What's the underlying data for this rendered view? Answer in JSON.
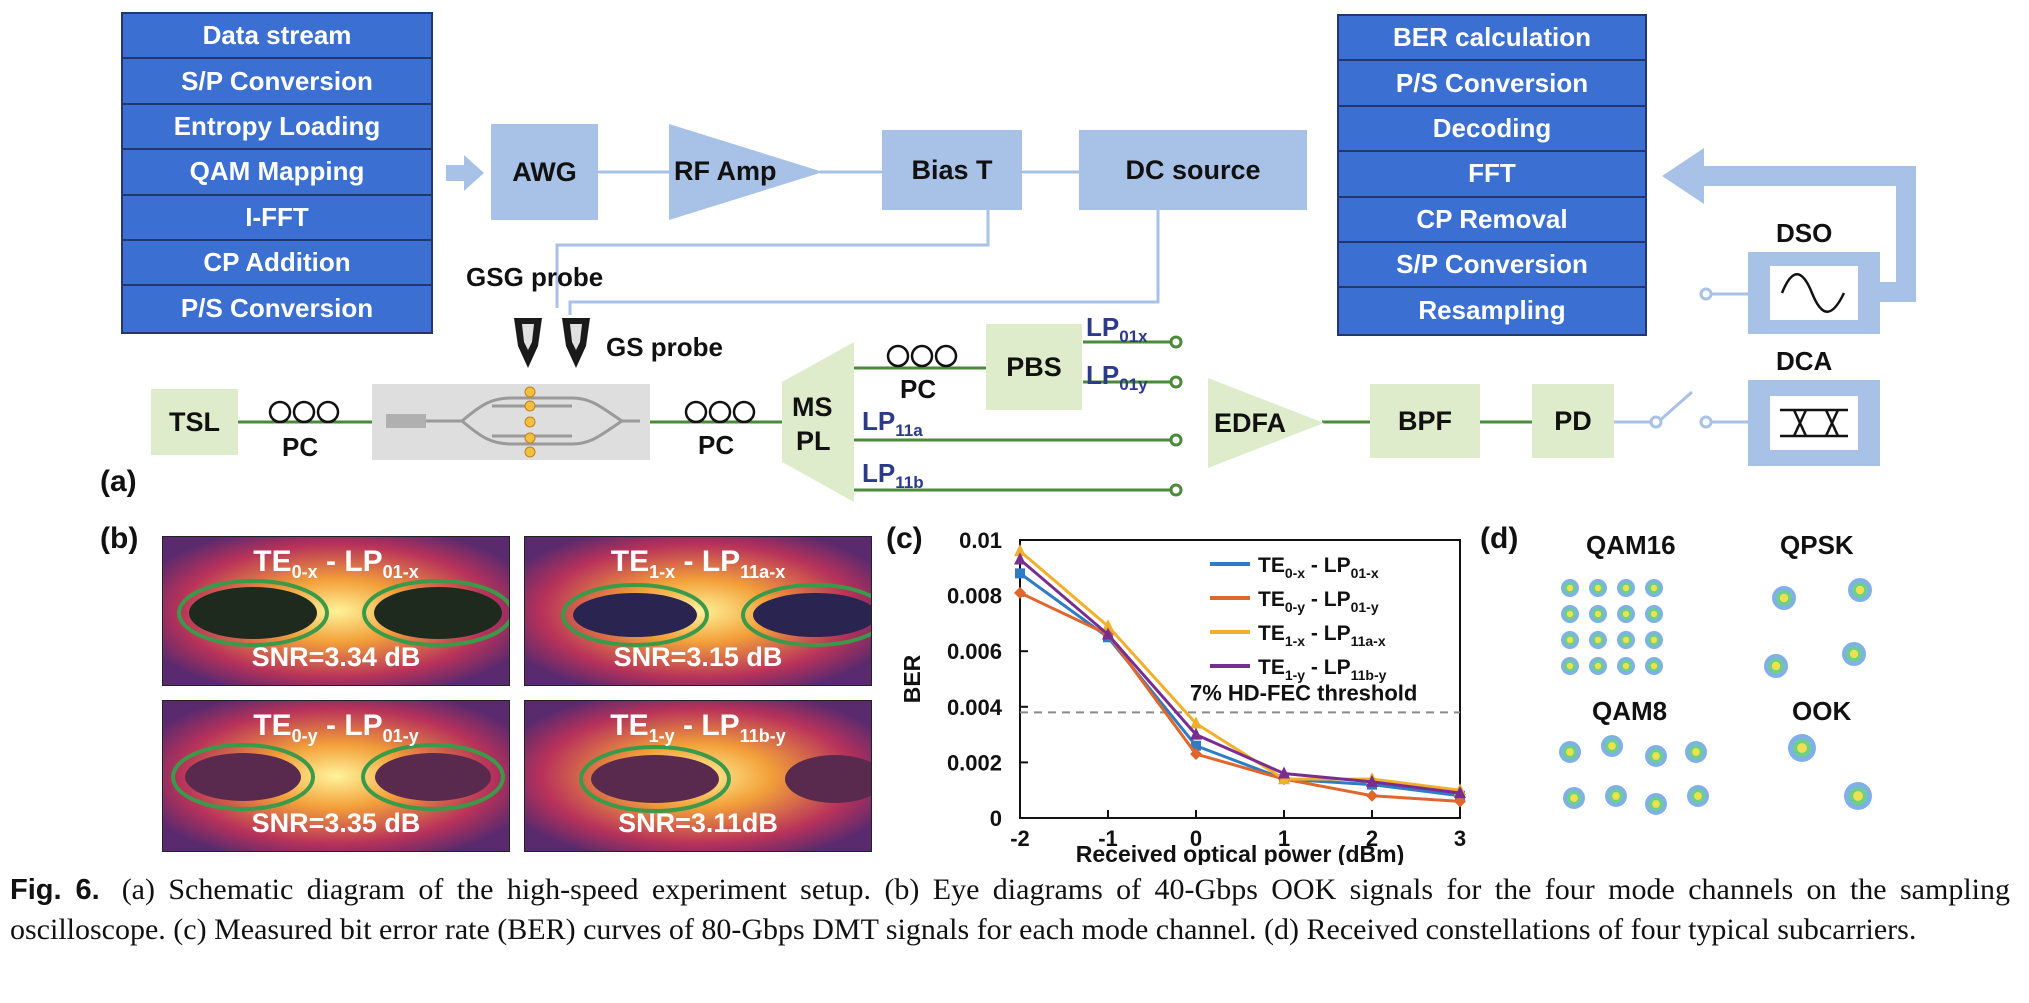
{
  "figure_number": "Fig. 6.",
  "caption": "(a) Schematic diagram of the high-speed experiment setup. (b) Eye diagrams of 40-Gbps OOK signals for the four mode channels on the sampling oscilloscope. (c) Measured bit error rate (BER) curves of 80-Gbps DMT signals for each mode channel. (d) Received constellations of four typical subcarriers.",
  "panel_a": {
    "letter": "(a)",
    "tx_stack": [
      "Data stream",
      "S/P Conversion",
      "Entropy Loading",
      "QAM Mapping",
      "I-FFT",
      "CP Addition",
      "P/S Conversion"
    ],
    "rx_stack": [
      "BER calculation",
      "P/S Conversion",
      "Decoding",
      "FFT",
      "CP Removal",
      "S/P Conversion",
      "Resampling"
    ],
    "awg": "AWG",
    "rf_amp": "RF Amp",
    "bias_t": "Bias T",
    "dc_source": "DC source",
    "gsg_probe": "GSG probe",
    "gs_probe": "GS probe",
    "tsl": "TSL",
    "pc": "PC",
    "mspl_line1": "MS",
    "mspl_line2": "PL",
    "pbs": "PBS",
    "edfa": "EDFA",
    "bpf": "BPF",
    "pd": "PD",
    "dso": "DSO",
    "dca": "DCA",
    "lp01x": {
      "base": "LP",
      "sub": "01x"
    },
    "lp01y": {
      "base": "LP",
      "sub": "01y"
    },
    "lp11a": {
      "base": "LP",
      "sub": "11a"
    },
    "lp11b": {
      "base": "LP",
      "sub": "11b"
    }
  },
  "panel_b": {
    "letter": "(b)",
    "eyes": [
      {
        "te": "TE",
        "te_sub": "0-x",
        "sep": " - ",
        "lp": "LP",
        "lp_sub": "01-x",
        "snr": "SNR=3.34 dB"
      },
      {
        "te": "TE",
        "te_sub": "1-x",
        "sep": " - ",
        "lp": "LP",
        "lp_sub": "11a-x",
        "snr": "SNR=3.15 dB"
      },
      {
        "te": "TE",
        "te_sub": "0-y",
        "sep": " - ",
        "lp": "LP",
        "lp_sub": "01-y",
        "snr": "SNR=3.35 dB"
      },
      {
        "te": "TE",
        "te_sub": "1-y",
        "sep": " - ",
        "lp": "LP",
        "lp_sub": "11b-y",
        "snr": "SNR=3.11dB"
      }
    ]
  },
  "panel_c": {
    "letter": "(c)"
  },
  "chart_data": {
    "type": "line",
    "xlabel": "Received optical power (dBm)",
    "ylabel": "BER",
    "xlim": [
      -2,
      3
    ],
    "ylim": [
      0,
      0.01
    ],
    "x": [
      -2,
      -1,
      0,
      1,
      2,
      3
    ],
    "x_ticks": [
      "-2",
      "-1",
      "0",
      "1",
      "2",
      "3"
    ],
    "y_ticks": [
      "0",
      "0.002",
      "0.004",
      "0.006",
      "0.008",
      "0.01"
    ],
    "y_tick_values": [
      0,
      0.002,
      0.004,
      0.006,
      0.008,
      0.01
    ],
    "threshold": {
      "value": 0.0038,
      "label": "7% HD-FEC threshold"
    },
    "series": [
      {
        "te": "TE",
        "te_sub": "0-x",
        "lp": "LP",
        "lp_sub": "01-x",
        "color": "#2e7cc4",
        "marker": "square",
        "values": [
          0.0088,
          0.0065,
          0.0026,
          0.0014,
          0.0012,
          0.0008
        ]
      },
      {
        "te": "TE",
        "te_sub": "0-y",
        "lp": "LP",
        "lp_sub": "01-y",
        "color": "#e1662b",
        "marker": "diamond",
        "values": [
          0.0081,
          0.0066,
          0.0023,
          0.0014,
          0.0008,
          0.0006
        ]
      },
      {
        "te": "TE",
        "te_sub": "1-x",
        "lp": "LP",
        "lp_sub": "11a-x",
        "color": "#f0b02a",
        "marker": "triangle",
        "values": [
          0.0096,
          0.0069,
          0.0034,
          0.0014,
          0.0014,
          0.001
        ]
      },
      {
        "te": "TE",
        "te_sub": "1-y",
        "lp": "LP",
        "lp_sub": "11b-y",
        "color": "#7a2d91",
        "marker": "triangle",
        "values": [
          0.0093,
          0.0066,
          0.003,
          0.0016,
          0.0013,
          0.0009
        ]
      }
    ],
    "legend_position": "top-right",
    "grid": false
  },
  "panel_d": {
    "letter": "(d)",
    "constellations": [
      {
        "label": "QAM16",
        "points": 16
      },
      {
        "label": "QPSK",
        "points": 4
      },
      {
        "label": "QAM8",
        "points": 8
      },
      {
        "label": "OOK",
        "points": 2
      }
    ]
  },
  "colors": {
    "stack_fill": "#3b6fd1",
    "stack_border": "#23376f",
    "light_blue": "#a8c1e6",
    "light_green": "#dfeccb",
    "fiber_green": "#4a8a3a",
    "lp_label": "#2b3a8a"
  },
  "icons": [
    "arrow-right-icon",
    "arrow-left-icon",
    "fiber-coil-icon",
    "probe-icon",
    "sine-wave-icon",
    "eye-pattern-icon",
    "switch-icon",
    "chip-icon"
  ]
}
